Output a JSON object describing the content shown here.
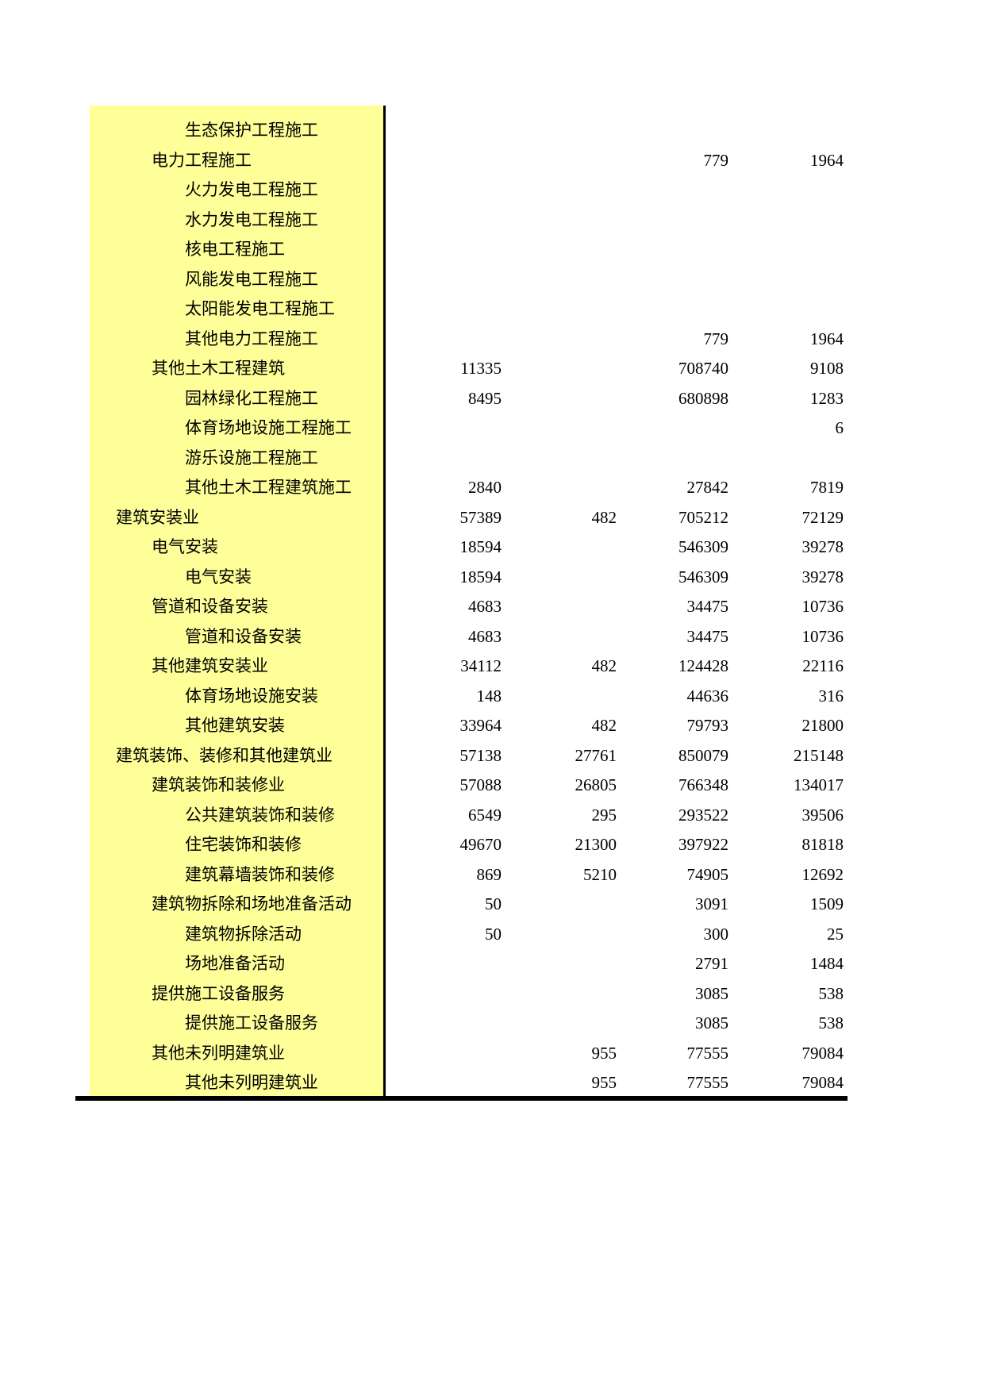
{
  "page": {
    "band_color": "#ffff99",
    "line_color": "#000000",
    "text_color": "#000000"
  },
  "table": {
    "rows": [
      {
        "label": "生态保护工程施工",
        "level": 3,
        "values": [
          "",
          "",
          "",
          ""
        ]
      },
      {
        "label": "电力工程施工",
        "level": 2,
        "values": [
          "",
          "",
          "779",
          "1964"
        ]
      },
      {
        "label": "火力发电工程施工",
        "level": 3,
        "values": [
          "",
          "",
          "",
          ""
        ]
      },
      {
        "label": "水力发电工程施工",
        "level": 3,
        "values": [
          "",
          "",
          "",
          ""
        ]
      },
      {
        "label": "核电工程施工",
        "level": 3,
        "values": [
          "",
          "",
          "",
          ""
        ]
      },
      {
        "label": "风能发电工程施工",
        "level": 3,
        "values": [
          "",
          "",
          "",
          ""
        ]
      },
      {
        "label": "太阳能发电工程施工",
        "level": 3,
        "values": [
          "",
          "",
          "",
          ""
        ]
      },
      {
        "label": "其他电力工程施工",
        "level": 3,
        "values": [
          "",
          "",
          "779",
          "1964"
        ]
      },
      {
        "label": "其他土木工程建筑",
        "level": 2,
        "values": [
          "11335",
          "",
          "708740",
          "9108"
        ]
      },
      {
        "label": "园林绿化工程施工",
        "level": 3,
        "values": [
          "8495",
          "",
          "680898",
          "1283"
        ]
      },
      {
        "label": "体育场地设施工程施工",
        "level": 3,
        "values": [
          "",
          "",
          "",
          "6"
        ]
      },
      {
        "label": "游乐设施工程施工",
        "level": 3,
        "values": [
          "",
          "",
          "",
          ""
        ]
      },
      {
        "label": "其他土木工程建筑施工",
        "level": 3,
        "values": [
          "2840",
          "",
          "27842",
          "7819"
        ]
      },
      {
        "label": "建筑安装业",
        "level": 1,
        "values": [
          "57389",
          "482",
          "705212",
          "72129"
        ]
      },
      {
        "label": "电气安装",
        "level": 2,
        "values": [
          "18594",
          "",
          "546309",
          "39278"
        ]
      },
      {
        "label": "电气安装",
        "level": 3,
        "values": [
          "18594",
          "",
          "546309",
          "39278"
        ]
      },
      {
        "label": "管道和设备安装",
        "level": 2,
        "values": [
          "4683",
          "",
          "34475",
          "10736"
        ]
      },
      {
        "label": "管道和设备安装",
        "level": 3,
        "values": [
          "4683",
          "",
          "34475",
          "10736"
        ]
      },
      {
        "label": "其他建筑安装业",
        "level": 2,
        "values": [
          "34112",
          "482",
          "124428",
          "22116"
        ]
      },
      {
        "label": "体育场地设施安装",
        "level": 3,
        "values": [
          "148",
          "",
          "44636",
          "316"
        ]
      },
      {
        "label": "其他建筑安装",
        "level": 3,
        "values": [
          "33964",
          "482",
          "79793",
          "21800"
        ]
      },
      {
        "label": "建筑装饰、装修和其他建筑业",
        "level": 1,
        "values": [
          "57138",
          "27761",
          "850079",
          "215148"
        ]
      },
      {
        "label": "建筑装饰和装修业",
        "level": 2,
        "values": [
          "57088",
          "26805",
          "766348",
          "134017"
        ]
      },
      {
        "label": "公共建筑装饰和装修",
        "level": 3,
        "values": [
          "6549",
          "295",
          "293522",
          "39506"
        ]
      },
      {
        "label": "住宅装饰和装修",
        "level": 3,
        "values": [
          "49670",
          "21300",
          "397922",
          "81818"
        ]
      },
      {
        "label": "建筑幕墙装饰和装修",
        "level": 3,
        "values": [
          "869",
          "5210",
          "74905",
          "12692"
        ]
      },
      {
        "label": "建筑物拆除和场地准备活动",
        "level": 2,
        "values": [
          "50",
          "",
          "3091",
          "1509"
        ]
      },
      {
        "label": "建筑物拆除活动",
        "level": 3,
        "values": [
          "50",
          "",
          "300",
          "25"
        ]
      },
      {
        "label": "场地准备活动",
        "level": 3,
        "values": [
          "",
          "",
          "2791",
          "1484"
        ]
      },
      {
        "label": "提供施工设备服务",
        "level": 2,
        "values": [
          "",
          "",
          "3085",
          "538"
        ]
      },
      {
        "label": "提供施工设备服务",
        "level": 3,
        "values": [
          "",
          "",
          "3085",
          "538"
        ]
      },
      {
        "label": "其他未列明建筑业",
        "level": 2,
        "values": [
          "",
          "955",
          "77555",
          "79084"
        ]
      },
      {
        "label": "其他未列明建筑业",
        "level": 3,
        "values": [
          "",
          "955",
          "77555",
          "79084"
        ]
      }
    ]
  }
}
